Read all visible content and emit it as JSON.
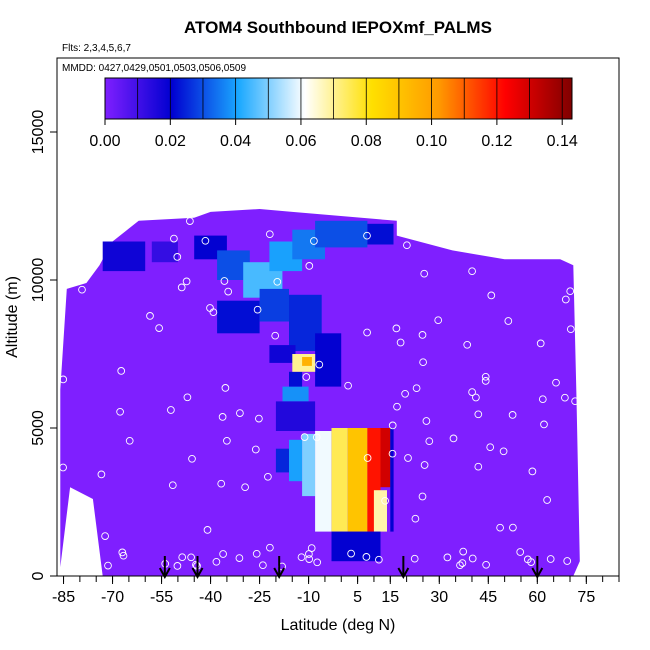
{
  "chart_data": {
    "type": "heatmap",
    "title": "ATOM4 Southbound IEPOXmf_PALMS",
    "subtitle_flights": "Flts: 2,3,4,5,6,7",
    "subtitle_dates": "MMDD: 0427,0429,0501,0503,0506,0509",
    "xlabel": "Latitude (deg N)",
    "ylabel": "Altitude (m)",
    "xlim": [
      -87,
      85
    ],
    "ylim": [
      0,
      17500
    ],
    "x_ticks": [
      -85,
      -70,
      -55,
      -40,
      -25,
      -10,
      5,
      15,
      30,
      45,
      60,
      75
    ],
    "y_ticks": [
      0,
      5000,
      10000,
      15000
    ],
    "colorbar": {
      "range": [
        0,
        0.143
      ],
      "ticks": [
        "0.00",
        "0.02",
        "0.04",
        "0.06",
        "0.08",
        "0.10",
        "0.12",
        "0.14"
      ],
      "tick_values": [
        0,
        0.02,
        0.04,
        0.06,
        0.08,
        0.1,
        0.12,
        0.14
      ],
      "colors": [
        "#7f1fff",
        "#0000d0",
        "#1aa8ff",
        "#ffffff",
        "#ffe000",
        "#ff9a00",
        "#ff0000",
        "#800000"
      ]
    },
    "arrows_latitude": [
      -54,
      -44,
      -19,
      19,
      60
    ],
    "background_value": 0.0,
    "regions": [
      {
        "lat": [
          -73,
          -60
        ],
        "alt": [
          10300,
          11300
        ],
        "value": 0.018
      },
      {
        "lat": [
          -58,
          -50
        ],
        "alt": [
          10600,
          11300
        ],
        "value": 0.012
      },
      {
        "lat": [
          -45,
          -35
        ],
        "alt": [
          10700,
          11500
        ],
        "value": 0.02
      },
      {
        "lat": [
          -38,
          -28
        ],
        "alt": [
          10000,
          11000
        ],
        "value": 0.03
      },
      {
        "lat": [
          -30,
          -18
        ],
        "alt": [
          9400,
          10600
        ],
        "value": 0.045
      },
      {
        "lat": [
          -22,
          -12
        ],
        "alt": [
          10300,
          11300
        ],
        "value": 0.04
      },
      {
        "lat": [
          -15,
          -5
        ],
        "alt": [
          10700,
          11700
        ],
        "value": 0.035
      },
      {
        "lat": [
          -8,
          8
        ],
        "alt": [
          11100,
          12000
        ],
        "value": 0.03
      },
      {
        "lat": [
          8,
          16
        ],
        "alt": [
          11200,
          11900
        ],
        "value": 0.022
      },
      {
        "lat": [
          -38,
          -25
        ],
        "alt": [
          8200,
          9300
        ],
        "value": 0.022
      },
      {
        "lat": [
          -25,
          -16
        ],
        "alt": [
          8600,
          9700
        ],
        "value": 0.028
      },
      {
        "lat": [
          -16,
          -6
        ],
        "alt": [
          7600,
          9500
        ],
        "value": 0.025
      },
      {
        "lat": [
          -8,
          0
        ],
        "alt": [
          6400,
          8200
        ],
        "value": 0.02
      },
      {
        "lat": [
          -22,
          -14
        ],
        "alt": [
          7200,
          7800
        ],
        "value": 0.018
      },
      {
        "lat": [
          -18,
          -10
        ],
        "alt": [
          5900,
          6400
        ],
        "value": 0.038
      },
      {
        "lat": [
          -16,
          -12
        ],
        "alt": [
          6400,
          6900
        ],
        "value": 0.022
      },
      {
        "lat": [
          -15,
          -8
        ],
        "alt": [
          6900,
          7500
        ],
        "value": 0.07
      },
      {
        "lat": [
          -12,
          -9
        ],
        "alt": [
          7100,
          7400
        ],
        "value": 0.095
      },
      {
        "lat": [
          -20,
          -8
        ],
        "alt": [
          4900,
          5900
        ],
        "value": 0.015
      },
      {
        "lat": [
          -20,
          -16
        ],
        "alt": [
          3500,
          4300
        ],
        "value": 0.025
      },
      {
        "lat": [
          -16,
          -12
        ],
        "alt": [
          3200,
          4600
        ],
        "value": 0.04
      },
      {
        "lat": [
          -12,
          -8
        ],
        "alt": [
          2700,
          4800
        ],
        "value": 0.05
      },
      {
        "lat": [
          -8,
          -3
        ],
        "alt": [
          1500,
          4900
        ],
        "value": 0.06
      },
      {
        "lat": [
          -3,
          2
        ],
        "alt": [
          1500,
          5000
        ],
        "value": 0.075
      },
      {
        "lat": [
          2,
          8
        ],
        "alt": [
          1500,
          5000
        ],
        "value": 0.09
      },
      {
        "lat": [
          8,
          12
        ],
        "alt": [
          1500,
          5000
        ],
        "value": 0.12
      },
      {
        "lat": [
          12,
          15
        ],
        "alt": [
          3000,
          5000
        ],
        "value": 0.13
      },
      {
        "lat": [
          10,
          14
        ],
        "alt": [
          1500,
          2900
        ],
        "value": 0.068
      },
      {
        "lat": [
          15,
          16
        ],
        "alt": [
          1500,
          5000
        ],
        "value": 0.02
      },
      {
        "lat": [
          -3,
          12
        ],
        "alt": [
          500,
          1500
        ],
        "value": 0.02
      }
    ]
  }
}
